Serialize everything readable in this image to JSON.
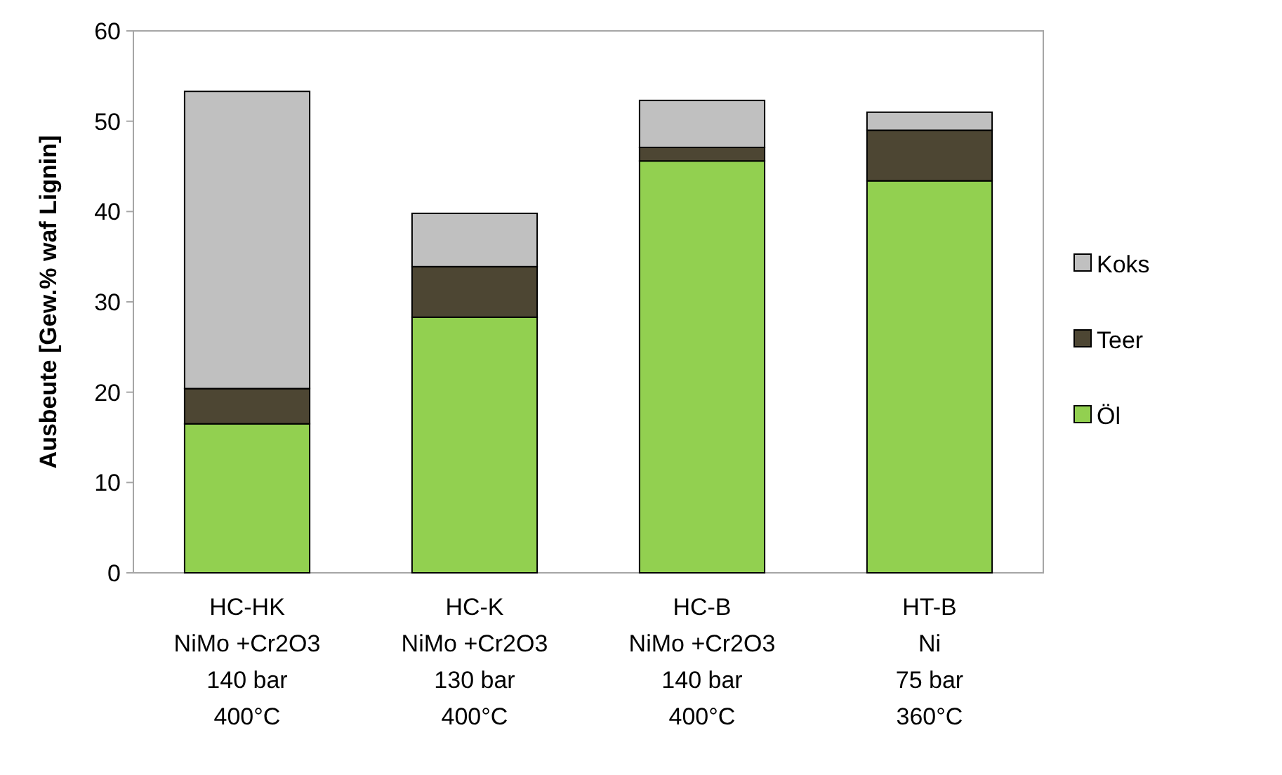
{
  "chart_data": {
    "type": "bar",
    "stacked": true,
    "ylabel": "Ausbeute [Gew.% waf Lignin]",
    "categories": [
      "HC-HK\nNiMo +Cr2O3\n140 bar\n400°C",
      "HC-K\nNiMo +Cr2O3\n130 bar\n400°C",
      "HC-B\nNiMo +Cr2O3\n140 bar\n400°C",
      "HT-B\nNi\n75 bar\n360°C"
    ],
    "series": [
      {
        "name": "Öl",
        "color": "#92d050",
        "values": [
          16.5,
          28.3,
          45.6,
          43.4
        ]
      },
      {
        "name": "Teer",
        "color": "#4d4633",
        "values": [
          3.9,
          5.6,
          1.5,
          5.6
        ]
      },
      {
        "name": "Koks",
        "color": "#c0c0c0",
        "values": [
          32.9,
          5.9,
          5.2,
          2.0
        ]
      }
    ],
    "ylim": [
      0,
      60
    ],
    "yticks": [
      0,
      10,
      20,
      30,
      40,
      50,
      60
    ],
    "grid": false,
    "legend": "right"
  }
}
